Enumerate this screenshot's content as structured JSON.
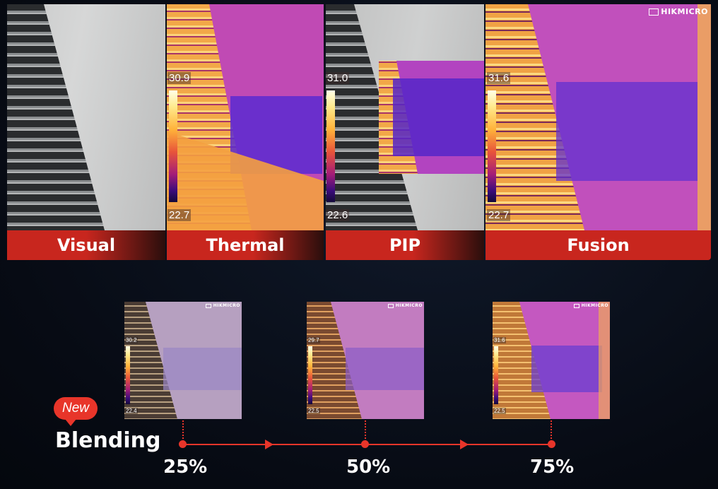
{
  "brand": "HIKMICRO",
  "modes": [
    {
      "label": "Visual"
    },
    {
      "label": "Thermal",
      "scale_max": "30.9",
      "scale_min": "22.7"
    },
    {
      "label": "PIP",
      "scale_max": "31.0",
      "scale_min": "22.6"
    },
    {
      "label": "Fusion",
      "scale_max": "31.6",
      "scale_min": "22.7"
    }
  ],
  "blending": {
    "badge": "New",
    "title": "Blending",
    "steps": [
      {
        "percent": "25%",
        "scale_max": "30.2",
        "scale_min": "22.4"
      },
      {
        "percent": "50%",
        "scale_max": "29.7",
        "scale_min": "22.5"
      },
      {
        "percent": "75%",
        "scale_max": "31.6",
        "scale_min": "22.5"
      }
    ]
  },
  "colors": {
    "accent_red": "#e8352a",
    "label_bar": "#c8261e"
  },
  "icons": [
    "hikmicro-logo-icon",
    "arrow-right-icon"
  ]
}
